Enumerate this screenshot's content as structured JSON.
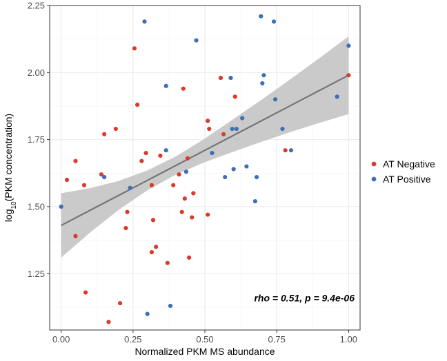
{
  "chart_data": {
    "type": "scatter",
    "title": "",
    "xlabel": "Normalized PKM MS abundance",
    "ylabel_prefix": "log",
    "ylabel_sub": "10",
    "ylabel_suffix": "(PKM concentration)",
    "xlim": [
      -0.04,
      1.04
    ],
    "ylim": [
      1.04,
      2.25
    ],
    "x_ticks": [
      0.0,
      0.25,
      0.5,
      0.75,
      1.0
    ],
    "x_tick_labels": [
      "0.00",
      "0.25",
      "0.50",
      "0.75",
      "1.00"
    ],
    "y_ticks": [
      1.25,
      1.5,
      1.75,
      2.0,
      2.25
    ],
    "y_tick_labels": [
      "1.25",
      "1.50",
      "1.75",
      "2.00",
      "2.25"
    ],
    "grid": true,
    "legend_position": "right",
    "annotation": "rho = 0.51, p = 9.4e-06",
    "colors": {
      "AT Negative": "#d93a2b",
      "AT Positive": "#3d6fb5",
      "fit_line": "#757575",
      "ci_band": "#c4c4c4"
    },
    "series": [
      {
        "name": "AT Negative",
        "points": [
          [
            0.02,
            1.6
          ],
          [
            0.05,
            1.39
          ],
          [
            0.05,
            1.67
          ],
          [
            0.08,
            1.58
          ],
          [
            0.085,
            1.18
          ],
          [
            0.14,
            1.62
          ],
          [
            0.15,
            1.77
          ],
          [
            0.165,
            1.07
          ],
          [
            0.19,
            1.79
          ],
          [
            0.205,
            1.14
          ],
          [
            0.225,
            1.42
          ],
          [
            0.23,
            1.48
          ],
          [
            0.255,
            2.09
          ],
          [
            0.265,
            1.88
          ],
          [
            0.28,
            1.67
          ],
          [
            0.295,
            1.7
          ],
          [
            0.315,
            1.58
          ],
          [
            0.315,
            1.33
          ],
          [
            0.32,
            1.45
          ],
          [
            0.33,
            1.35
          ],
          [
            0.345,
            1.69
          ],
          [
            0.37,
            1.29
          ],
          [
            0.39,
            1.58
          ],
          [
            0.41,
            1.62
          ],
          [
            0.42,
            1.48
          ],
          [
            0.425,
            1.94
          ],
          [
            0.43,
            1.53
          ],
          [
            0.44,
            1.68
          ],
          [
            0.445,
            1.31
          ],
          [
            0.455,
            1.46
          ],
          [
            0.46,
            1.55
          ],
          [
            0.51,
            1.82
          ],
          [
            0.51,
            1.47
          ],
          [
            0.515,
            1.79
          ],
          [
            0.555,
            1.98
          ],
          [
            0.565,
            1.77
          ],
          [
            0.605,
            1.91
          ],
          [
            0.78,
            1.71
          ],
          [
            1.0,
            1.99
          ]
        ]
      },
      {
        "name": "AT Positive",
        "points": [
          [
            0.0,
            1.5
          ],
          [
            0.15,
            1.61
          ],
          [
            0.24,
            1.57
          ],
          [
            0.29,
            2.19
          ],
          [
            0.3,
            1.1
          ],
          [
            0.365,
            1.95
          ],
          [
            0.365,
            1.71
          ],
          [
            0.38,
            1.13
          ],
          [
            0.435,
            1.63
          ],
          [
            0.47,
            2.12
          ],
          [
            0.525,
            1.7
          ],
          [
            0.57,
            1.61
          ],
          [
            0.59,
            1.98
          ],
          [
            0.595,
            1.79
          ],
          [
            0.6,
            1.64
          ],
          [
            0.61,
            1.79
          ],
          [
            0.63,
            1.83
          ],
          [
            0.645,
            1.65
          ],
          [
            0.675,
            1.52
          ],
          [
            0.68,
            1.61
          ],
          [
            0.695,
            2.21
          ],
          [
            0.7,
            1.96
          ],
          [
            0.705,
            1.99
          ],
          [
            0.74,
            2.19
          ],
          [
            0.745,
            1.9
          ],
          [
            0.77,
            1.79
          ],
          [
            0.8,
            1.71
          ],
          [
            0.96,
            1.91
          ],
          [
            1.0,
            2.1
          ]
        ]
      }
    ],
    "fit": {
      "x": [
        0.0,
        0.1,
        0.2,
        0.3,
        0.4,
        0.5,
        0.6,
        0.7,
        0.8,
        0.9,
        1.0
      ],
      "y": [
        1.43,
        1.486,
        1.542,
        1.598,
        1.654,
        1.71,
        1.766,
        1.822,
        1.878,
        1.934,
        1.99
      ],
      "lower": [
        1.31,
        1.403,
        1.488,
        1.561,
        1.62,
        1.666,
        1.705,
        1.743,
        1.779,
        1.813,
        1.845
      ],
      "upper": [
        1.55,
        1.569,
        1.596,
        1.635,
        1.688,
        1.754,
        1.827,
        1.901,
        1.977,
        2.055,
        2.135
      ]
    }
  }
}
